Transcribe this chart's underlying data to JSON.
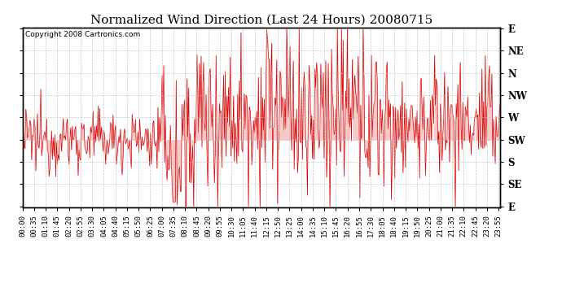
{
  "title": "Normalized Wind Direction (Last 24 Hours) 20080715",
  "copyright_text": "Copyright 2008 Cartronics.com",
  "line_color": "#dd0000",
  "background_color": "#ffffff",
  "grid_color": "#bbbbbb",
  "y_labels": [
    "E",
    "NE",
    "N",
    "NW",
    "W",
    "SW",
    "S",
    "SE",
    "E"
  ],
  "y_values": [
    8,
    7,
    6,
    5,
    4,
    3,
    2,
    1,
    0
  ],
  "ylim": [
    -0.05,
    8.05
  ],
  "title_fontsize": 11,
  "tick_fontsize": 6.5,
  "copyright_fontsize": 6.5,
  "tick_times_str": [
    "00:00",
    "00:35",
    "01:10",
    "01:45",
    "02:20",
    "02:55",
    "03:30",
    "04:05",
    "04:40",
    "05:15",
    "05:50",
    "06:25",
    "07:00",
    "07:35",
    "08:10",
    "08:45",
    "09:20",
    "09:55",
    "10:30",
    "11:05",
    "11:40",
    "12:15",
    "12:50",
    "13:25",
    "14:00",
    "14:35",
    "15:10",
    "15:45",
    "16:20",
    "16:55",
    "17:30",
    "18:05",
    "18:40",
    "19:15",
    "19:50",
    "20:25",
    "21:00",
    "21:35",
    "22:10",
    "22:45",
    "23:20",
    "23:55"
  ]
}
